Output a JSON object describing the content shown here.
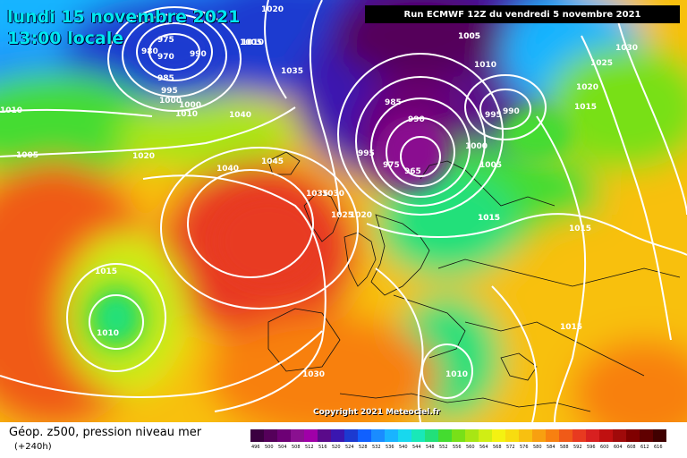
{
  "header": {
    "date_line": "lundi 15 novembre 2021",
    "time_line": "13:00 locale",
    "run_info": "Run ECMWF 12Z du vendredi 5 novembre 2021"
  },
  "footer": {
    "legend_title": "Géop. z500, pression niveau mer",
    "legend_subtitle": "(+240h)",
    "copyright": "Copyright 2021 Meteociel.fr"
  },
  "scale": {
    "ticks": [
      "496",
      "500",
      "504",
      "508",
      "512",
      "516",
      "520",
      "524",
      "528",
      "532",
      "536",
      "540",
      "544",
      "548",
      "552",
      "556",
      "560",
      "564",
      "568",
      "572",
      "576",
      "580",
      "584",
      "588",
      "592",
      "596",
      "600",
      "604",
      "608",
      "612",
      "616"
    ],
    "colors": [
      "#3b0040",
      "#55005a",
      "#6d0075",
      "#8a1090",
      "#a000a8",
      "#5a0a8a",
      "#3a16b0",
      "#1c3ad0",
      "#1060ff",
      "#1a8cff",
      "#19b4ff",
      "#18d8ee",
      "#19e8b8",
      "#22e07a",
      "#44dc30",
      "#78e018",
      "#a8e614",
      "#d0ee14",
      "#f4f212",
      "#f8dc10",
      "#f8c010",
      "#f8a010",
      "#f88010",
      "#f05a18",
      "#e83a20",
      "#d82020",
      "#c01010",
      "#a00a0a",
      "#800000",
      "#600000",
      "#400000"
    ]
  },
  "isobars": {
    "labels": [
      "1020",
      "1005",
      "1010",
      "1035",
      "1040",
      "1045",
      "1040",
      "1020",
      "1005",
      "1000",
      "1010",
      "1030",
      "1025",
      "1020",
      "975",
      "980",
      "970",
      "990",
      "985",
      "995",
      "1000",
      "1010",
      "1010",
      "1005",
      "1020",
      "1035",
      "1030",
      "1025",
      "1020",
      "1015",
      "985",
      "990",
      "995",
      "990",
      "995",
      "1000",
      "1005",
      "975",
      "965",
      "1015",
      "1015",
      "1015",
      "1010",
      "1015",
      "1010",
      "1030",
      "1010",
      "1015",
      "1005"
    ]
  }
}
